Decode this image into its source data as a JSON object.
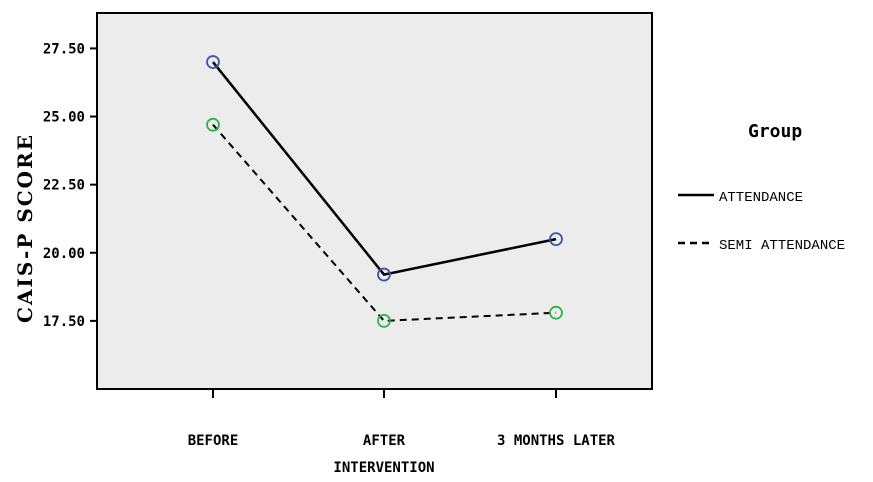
{
  "chart_data": {
    "type": "line",
    "categories": [
      [
        "BEFORE"
      ],
      [
        "AFTER",
        "INTERVENTION"
      ],
      [
        "3 MONTHS LATER"
      ]
    ],
    "ylabel": "CAIS-P SCORE",
    "xlabel": "",
    "ylim": [
      15.0,
      28.8
    ],
    "yticks": [
      "27.50",
      "25.00",
      "22.50",
      "20.00",
      "17.50"
    ],
    "ytick_values": [
      27.5,
      25.0,
      22.5,
      20.0,
      17.5
    ],
    "grid": false,
    "legend": {
      "title": "Group",
      "placement": "right"
    },
    "series": [
      {
        "name": "ATTENDANCE",
        "values": [
          27.0,
          19.2,
          20.5
        ],
        "line_style": "solid",
        "marker_color": "#3a56a8"
      },
      {
        "name": "SEMI ATTENDANCE",
        "values": [
          24.7,
          17.5,
          17.8
        ],
        "line_style": "dashed",
        "marker_color": "#2db34a"
      }
    ],
    "colors": {
      "plot_background": "#ececec",
      "line": "#000000"
    }
  }
}
